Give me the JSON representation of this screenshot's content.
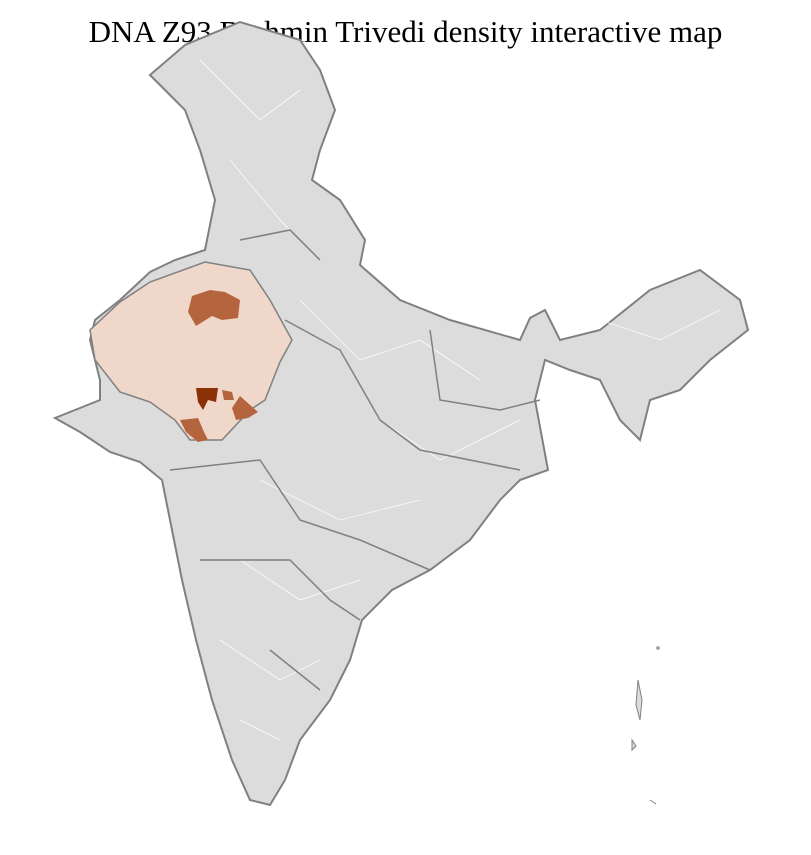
{
  "title": "DNA Z93 Brahmin Trivedi density interactive map",
  "colors": {
    "base": "#dcdcdc",
    "border_state": "#808080",
    "border_district": "#ffffff",
    "low_density": "#efd7ca",
    "medium_density": "#b5653d",
    "high_density": "#8c3005"
  }
}
